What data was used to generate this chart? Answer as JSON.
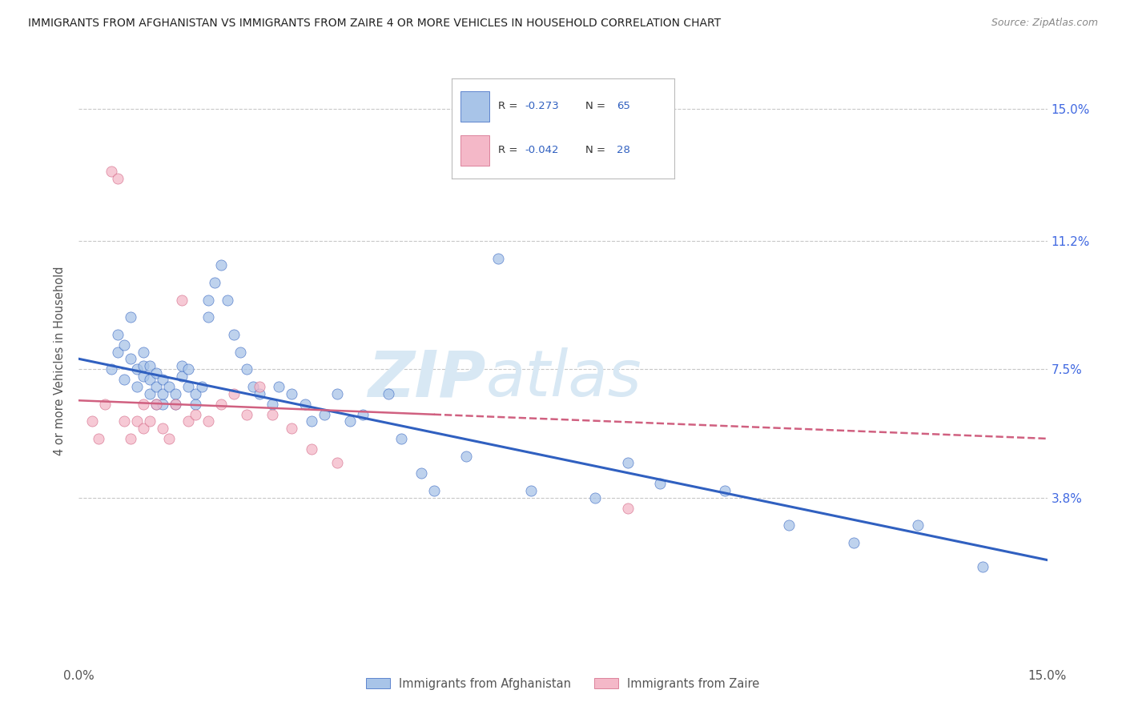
{
  "title": "IMMIGRANTS FROM AFGHANISTAN VS IMMIGRANTS FROM ZAIRE 4 OR MORE VEHICLES IN HOUSEHOLD CORRELATION CHART",
  "source": "Source: ZipAtlas.com",
  "ylabel": "4 or more Vehicles in Household",
  "yticks_labels": [
    "15.0%",
    "11.2%",
    "7.5%",
    "3.8%"
  ],
  "ytick_vals": [
    0.15,
    0.112,
    0.075,
    0.038
  ],
  "xlim": [
    0.0,
    0.15
  ],
  "ylim": [
    -0.01,
    0.165
  ],
  "color_afghanistan": "#a8c4e8",
  "color_zaire": "#f4b8c8",
  "color_trend_afghanistan": "#3060c0",
  "color_trend_zaire": "#d06080",
  "watermark_zip": "ZIP",
  "watermark_atlas": "atlas",
  "afghanistan_x": [
    0.005,
    0.006,
    0.006,
    0.007,
    0.007,
    0.008,
    0.008,
    0.009,
    0.009,
    0.01,
    0.01,
    0.01,
    0.011,
    0.011,
    0.011,
    0.012,
    0.012,
    0.012,
    0.013,
    0.013,
    0.013,
    0.014,
    0.015,
    0.015,
    0.016,
    0.016,
    0.017,
    0.017,
    0.018,
    0.018,
    0.019,
    0.02,
    0.02,
    0.021,
    0.022,
    0.023,
    0.024,
    0.025,
    0.026,
    0.027,
    0.028,
    0.03,
    0.031,
    0.033,
    0.035,
    0.036,
    0.038,
    0.04,
    0.042,
    0.044,
    0.048,
    0.05,
    0.053,
    0.055,
    0.06,
    0.065,
    0.07,
    0.08,
    0.085,
    0.09,
    0.1,
    0.11,
    0.12,
    0.13,
    0.14
  ],
  "afghanistan_y": [
    0.075,
    0.08,
    0.085,
    0.072,
    0.082,
    0.078,
    0.09,
    0.07,
    0.075,
    0.073,
    0.076,
    0.08,
    0.068,
    0.072,
    0.076,
    0.065,
    0.07,
    0.074,
    0.065,
    0.068,
    0.072,
    0.07,
    0.065,
    0.068,
    0.073,
    0.076,
    0.07,
    0.075,
    0.065,
    0.068,
    0.07,
    0.09,
    0.095,
    0.1,
    0.105,
    0.095,
    0.085,
    0.08,
    0.075,
    0.07,
    0.068,
    0.065,
    0.07,
    0.068,
    0.065,
    0.06,
    0.062,
    0.068,
    0.06,
    0.062,
    0.068,
    0.055,
    0.045,
    0.04,
    0.05,
    0.107,
    0.04,
    0.038,
    0.048,
    0.042,
    0.04,
    0.03,
    0.025,
    0.03,
    0.018
  ],
  "zaire_x": [
    0.002,
    0.003,
    0.004,
    0.005,
    0.006,
    0.007,
    0.008,
    0.009,
    0.01,
    0.01,
    0.011,
    0.012,
    0.013,
    0.014,
    0.015,
    0.016,
    0.017,
    0.018,
    0.02,
    0.022,
    0.024,
    0.026,
    0.028,
    0.03,
    0.033,
    0.036,
    0.04,
    0.085
  ],
  "zaire_y": [
    0.06,
    0.055,
    0.065,
    0.132,
    0.13,
    0.06,
    0.055,
    0.06,
    0.058,
    0.065,
    0.06,
    0.065,
    0.058,
    0.055,
    0.065,
    0.095,
    0.06,
    0.062,
    0.06,
    0.065,
    0.068,
    0.062,
    0.07,
    0.062,
    0.058,
    0.052,
    0.048,
    0.035
  ],
  "af_trend_x0": 0.0,
  "af_trend_y0": 0.078,
  "af_trend_x1": 0.15,
  "af_trend_y1": 0.02,
  "zr_trend_x0": 0.0,
  "zr_trend_y0": 0.066,
  "zr_trend_x1": 0.15,
  "zr_trend_y1": 0.055
}
